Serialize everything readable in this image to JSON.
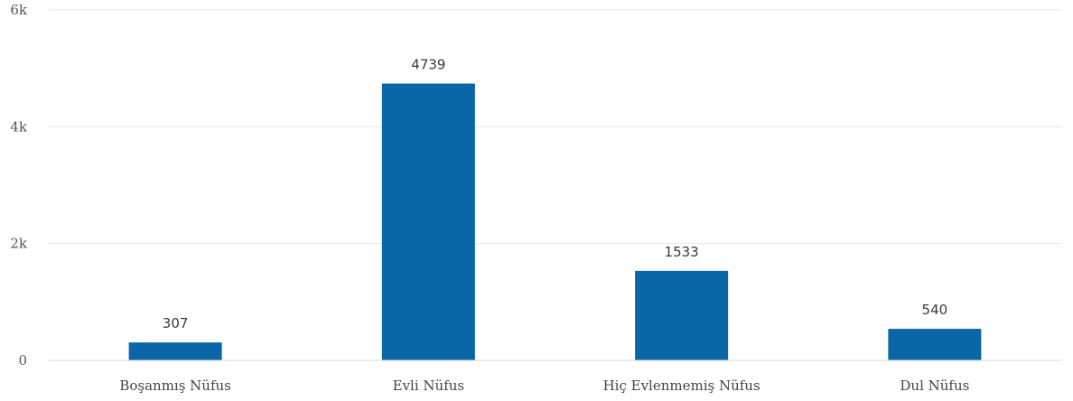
{
  "chart_data": {
    "type": "bar",
    "categories": [
      "Boşanmış Nüfus",
      "Evli Nüfus",
      "Hiç Evlenmemiş Nüfus",
      "Dul Nüfus"
    ],
    "values": [
      307,
      4739,
      1533,
      540
    ],
    "data_labels": [
      "307",
      "4739",
      "1533",
      "540"
    ],
    "title": "",
    "xlabel": "",
    "ylabel": "",
    "ylim": [
      0,
      6000
    ],
    "yticks": [
      0,
      2000,
      4000,
      6000
    ],
    "ytick_labels": [
      "0",
      "2k",
      "4k",
      "6k"
    ],
    "grid": true,
    "legend": "none",
    "bar_color": "#0a66a6",
    "grid_color": "#e6e6e6"
  }
}
